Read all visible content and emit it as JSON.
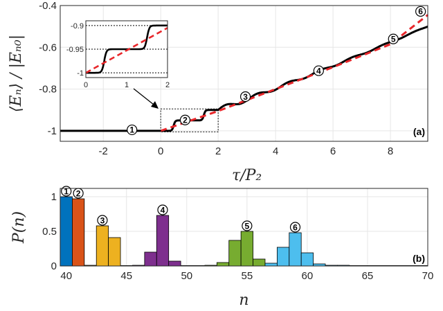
{
  "chart_data": [
    {
      "panel": "(a)",
      "type": "line",
      "xlabel": "τ/P₂",
      "ylabel": "⟨Eₙ⟩ / |Eₙ₀|",
      "xlim": [
        -3.5,
        9.3
      ],
      "ylim": [
        -1.05,
        -0.4
      ],
      "xticks": [
        -2,
        0,
        2,
        4,
        6,
        8
      ],
      "yticks": [
        -1,
        -0.8,
        -0.6,
        -0.4
      ],
      "xtick_labels": [
        "-2",
        "0",
        "2",
        "4",
        "6",
        "8"
      ],
      "ytick_labels": [
        "-1",
        "-0.8",
        "-0.6",
        "-0.4"
      ],
      "grid": true,
      "series": [
        {
          "style": "black-solid",
          "color": "#000000",
          "x": [
            -3.5,
            0,
            0.5,
            1,
            1.5,
            2,
            2.5,
            3,
            3.5,
            4,
            4.5,
            5,
            6,
            7,
            8,
            9.3
          ],
          "y": [
            -1,
            -1,
            -0.95,
            -0.948,
            -0.905,
            -0.9,
            -0.87,
            -0.845,
            -0.82,
            -0.795,
            -0.77,
            -0.745,
            -0.695,
            -0.642,
            -0.59,
            -0.445
          ]
        },
        {
          "style": "red-dashed",
          "color": "#e8262a",
          "x": [
            0,
            2,
            4,
            6,
            8,
            9.3
          ],
          "y": [
            -1,
            -0.905,
            -0.8,
            -0.695,
            -0.585,
            -0.445
          ]
        }
      ],
      "markers": [
        {
          "label": "①",
          "x": -1,
          "y": -0.995
        },
        {
          "label": "②",
          "x": 0.85,
          "y": -0.948
        },
        {
          "label": "③",
          "x": 2.95,
          "y": -0.836
        },
        {
          "label": "④",
          "x": 5.5,
          "y": -0.712
        },
        {
          "label": "⑤",
          "x": 8.1,
          "y": -0.56
        },
        {
          "label": "⑥",
          "x": 9.05,
          "y": -0.428
        }
      ],
      "zoom_box": {
        "xlim": [
          0,
          2
        ],
        "ylim": [
          -1.005,
          -0.895
        ]
      },
      "inset": {
        "xlim": [
          0,
          2
        ],
        "ylim": [
          -1.01,
          -0.89
        ],
        "xticks": [
          0,
          1,
          2
        ],
        "yticks": [
          -1,
          -0.95,
          -0.9
        ],
        "xtick_labels": [
          "0",
          "1",
          "2"
        ],
        "ytick_labels": [
          "-1",
          "-0.95",
          "-0.9"
        ]
      }
    },
    {
      "panel": "(b)",
      "type": "bar",
      "xlabel": "n",
      "ylabel": "P(n)",
      "xlim": [
        39.5,
        70
      ],
      "ylim": [
        0,
        1.12
      ],
      "xticks": [
        40,
        45,
        50,
        55,
        60,
        65,
        70
      ],
      "yticks": [
        0,
        0.5,
        1
      ],
      "xtick_labels": [
        "40",
        "45",
        "50",
        "55",
        "60",
        "65",
        "70"
      ],
      "ytick_labels": [
        "0",
        "0.5",
        "1"
      ],
      "grid": true,
      "series": [
        {
          "label": "①",
          "color": "#0072bd",
          "n": [
            40
          ],
          "values": [
            1.0
          ]
        },
        {
          "label": "②",
          "color": "#d95319",
          "n": [
            41
          ],
          "values": [
            0.97
          ]
        },
        {
          "label": "③",
          "color": "#edb120",
          "n": [
            42,
            43,
            44
          ],
          "values": [
            0.01,
            0.58,
            0.41
          ]
        },
        {
          "label": "④",
          "color": "#7e2f8e",
          "n": [
            46,
            47,
            48,
            49
          ],
          "values": [
            0.01,
            0.2,
            0.73,
            0.07
          ]
        },
        {
          "label": "⑤",
          "color": "#77ac30",
          "n": [
            52,
            53,
            54,
            55,
            56
          ],
          "values": [
            0.01,
            0.05,
            0.37,
            0.5,
            0.1
          ]
        },
        {
          "label": "⑥",
          "color": "#4dbeee",
          "n": [
            57,
            58,
            59,
            60,
            61,
            62,
            63
          ],
          "values": [
            0.04,
            0.27,
            0.48,
            0.19,
            0.03,
            0.01,
            0.01
          ]
        }
      ]
    }
  ]
}
